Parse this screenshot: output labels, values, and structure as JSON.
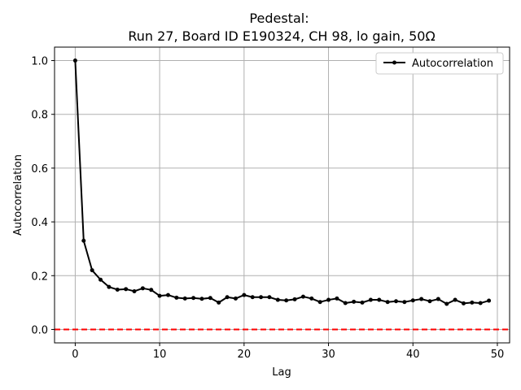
{
  "chart_data": {
    "type": "line",
    "title_line1": "Pedestal:",
    "title_line2": "Run 27, Board ID E190324, CH 98, lo gain, 50Ω",
    "xlabel": "Lag",
    "ylabel": "Autocorrelation",
    "xlim": [
      -2.45,
      51.45
    ],
    "ylim": [
      -0.05,
      1.05
    ],
    "xticks": [
      0,
      10,
      20,
      30,
      40,
      50
    ],
    "yticks": [
      0.0,
      0.2,
      0.4,
      0.6,
      0.8,
      1.0
    ],
    "xtick_labels": [
      "0",
      "10",
      "20",
      "30",
      "40",
      "50"
    ],
    "ytick_labels": [
      "0.0",
      "0.2",
      "0.4",
      "0.6",
      "0.8",
      "1.0"
    ],
    "grid": true,
    "legend_position": "top-right",
    "reference_line": {
      "y": 0.0,
      "color": "#ff0000",
      "style": "dashed"
    },
    "series": [
      {
        "name": "Autocorrelation",
        "color": "#000000",
        "marker": "dot",
        "x": [
          0,
          1,
          2,
          3,
          4,
          5,
          6,
          7,
          8,
          9,
          10,
          11,
          12,
          13,
          14,
          15,
          16,
          17,
          18,
          19,
          20,
          21,
          22,
          23,
          24,
          25,
          26,
          27,
          28,
          29,
          30,
          31,
          32,
          33,
          34,
          35,
          36,
          37,
          38,
          39,
          40,
          41,
          42,
          43,
          44,
          45,
          46,
          47,
          48,
          49
        ],
        "values": [
          1.0,
          0.33,
          0.22,
          0.185,
          0.158,
          0.148,
          0.15,
          0.142,
          0.153,
          0.147,
          0.125,
          0.128,
          0.118,
          0.115,
          0.117,
          0.114,
          0.117,
          0.1,
          0.12,
          0.115,
          0.128,
          0.12,
          0.12,
          0.12,
          0.11,
          0.108,
          0.112,
          0.122,
          0.115,
          0.102,
          0.11,
          0.115,
          0.098,
          0.103,
          0.1,
          0.11,
          0.11,
          0.102,
          0.105,
          0.102,
          0.108,
          0.113,
          0.105,
          0.113,
          0.095,
          0.11,
          0.097,
          0.1,
          0.098,
          0.107
        ]
      }
    ]
  }
}
